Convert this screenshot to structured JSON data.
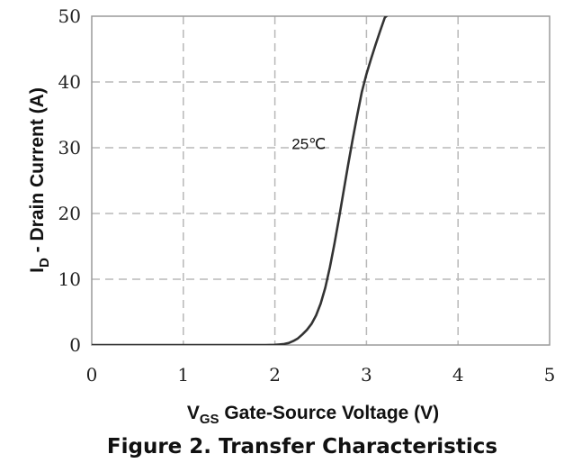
{
  "chart_data": {
    "type": "line",
    "xlabel_main": "V",
    "xlabel_sub": "GS",
    "xlabel_rest": " Gate-Source Voltage (V)",
    "ylabel_main": "I",
    "ylabel_sub": "D",
    "ylabel_rest": " - Drain Current (A)",
    "caption": "Figure 2. Transfer Characteristics",
    "xlim": [
      0,
      5
    ],
    "ylim": [
      0,
      50
    ],
    "x_ticks": [
      "0",
      "1",
      "2",
      "3",
      "4",
      "5"
    ],
    "y_ticks": [
      "0",
      "10",
      "20",
      "30",
      "40",
      "50"
    ],
    "grid": true,
    "grid_style": "dashed",
    "series": [
      {
        "color": "#333333",
        "x": [
          0,
          1.0,
          1.9,
          2.0,
          2.05,
          2.1,
          2.15,
          2.2,
          2.25,
          2.3,
          2.35,
          2.4,
          2.45,
          2.5,
          2.55,
          2.6,
          2.65,
          2.7,
          2.75,
          2.8,
          2.85,
          2.9,
          2.95,
          3.0,
          3.05,
          3.1,
          3.15,
          3.2,
          3.25
        ],
        "y": [
          0,
          0,
          0,
          0.03,
          0.08,
          0.15,
          0.3,
          0.6,
          1.0,
          1.6,
          2.3,
          3.2,
          4.5,
          6.3,
          8.7,
          11.8,
          15.4,
          19.3,
          23.4,
          27.4,
          31.3,
          35.0,
          38.5,
          41.2,
          43.5,
          45.7,
          47.8,
          49.8,
          51.5
        ]
      }
    ],
    "annotations": [
      {
        "text": "25℃",
        "x": 2.37,
        "y": 29.8
      }
    ]
  }
}
